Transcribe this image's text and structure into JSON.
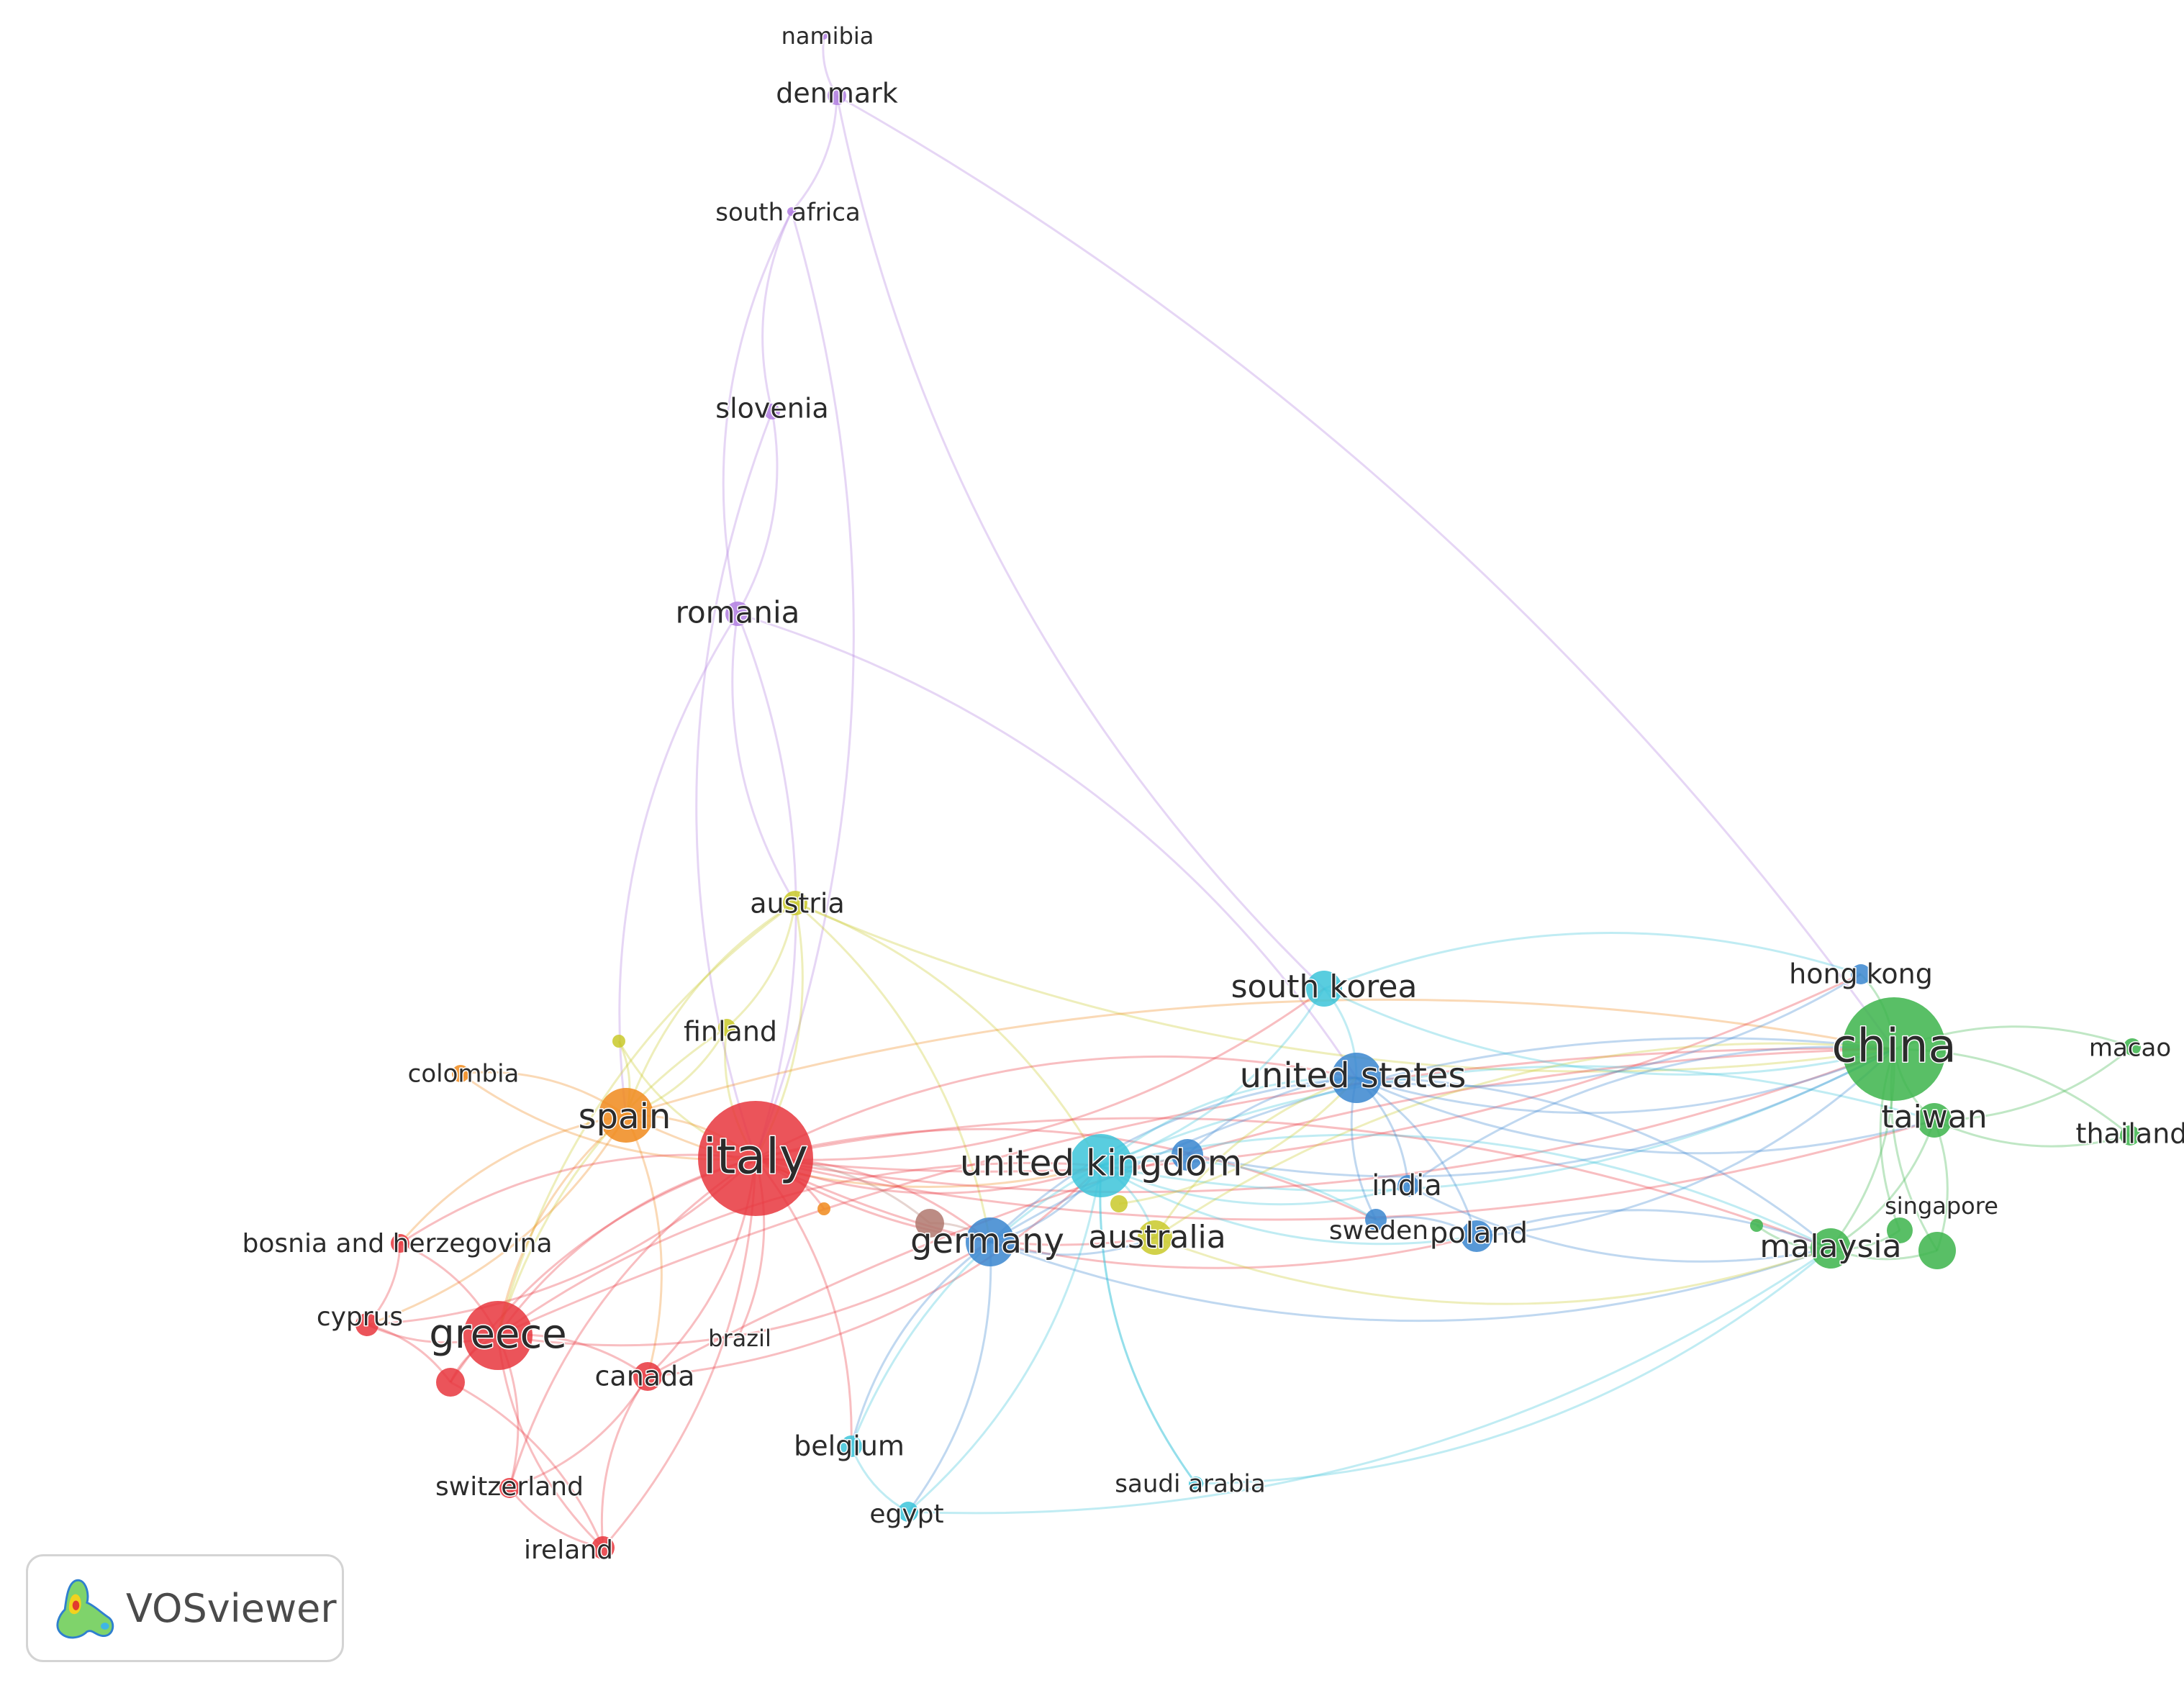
{
  "app": {
    "name": "VOSviewer"
  },
  "network": {
    "clusters": [
      {
        "id": 1,
        "color": "#e8363d"
      },
      {
        "id": 2,
        "color": "#3cb44b"
      },
      {
        "id": 3,
        "color": "#3a86cf"
      },
      {
        "id": 4,
        "color": "#c9c92a"
      },
      {
        "id": 5,
        "color": "#b07ee0"
      },
      {
        "id": 6,
        "color": "#3cc4d9"
      },
      {
        "id": 7,
        "color": "#f08a1c"
      },
      {
        "id": 8,
        "color": "#b0786e"
      }
    ],
    "nodes": [
      {
        "id": "namibia",
        "label": "namibia",
        "cluster": 5
      },
      {
        "id": "denmark",
        "label": "denmark",
        "cluster": 5
      },
      {
        "id": "south_africa",
        "label": "south africa",
        "cluster": 5
      },
      {
        "id": "slovenia",
        "label": "slovenia",
        "cluster": 5
      },
      {
        "id": "romania",
        "label": "romania",
        "cluster": 5
      },
      {
        "id": "austria",
        "label": "austria",
        "cluster": 4
      },
      {
        "id": "finland",
        "label": "finland",
        "cluster": 4
      },
      {
        "id": "yellow_small",
        "label": "",
        "cluster": 4
      },
      {
        "id": "colombia",
        "label": "colombia",
        "cluster": 7
      },
      {
        "id": "spain",
        "label": "spain",
        "cluster": 7
      },
      {
        "id": "orange_small",
        "label": "",
        "cluster": 7
      },
      {
        "id": "italy",
        "label": "italy",
        "cluster": 1
      },
      {
        "id": "bosnia",
        "label": "bosnia and herzegovina",
        "cluster": 1
      },
      {
        "id": "cyprus",
        "label": "cyprus",
        "cluster": 1
      },
      {
        "id": "greece",
        "label": "greece",
        "cluster": 1
      },
      {
        "id": "red_small",
        "label": "",
        "cluster": 1
      },
      {
        "id": "canada",
        "label": "canada",
        "cluster": 1
      },
      {
        "id": "brazil",
        "label": "brazil",
        "cluster": 1
      },
      {
        "id": "switzerland",
        "label": "switzerland",
        "cluster": 1
      },
      {
        "id": "ireland",
        "label": "ireland",
        "cluster": 1
      },
      {
        "id": "germany",
        "label": "germany",
        "cluster": 3
      },
      {
        "id": "brown_node",
        "label": "",
        "cluster": 8
      },
      {
        "id": "united_kingdom",
        "label": "united kingdom",
        "cluster": 6
      },
      {
        "id": "blue_uk",
        "label": "",
        "cluster": 3
      },
      {
        "id": "australia",
        "label": "australia",
        "cluster": 4
      },
      {
        "id": "yellow_au",
        "label": "",
        "cluster": 4
      },
      {
        "id": "belgium",
        "label": "belgium",
        "cluster": 6
      },
      {
        "id": "egypt",
        "label": "egypt",
        "cluster": 6
      },
      {
        "id": "saudi_arabia",
        "label": "saudi arabia",
        "cluster": 6
      },
      {
        "id": "south_korea",
        "label": "south korea",
        "cluster": 6
      },
      {
        "id": "united_states",
        "label": "united states",
        "cluster": 3
      },
      {
        "id": "india",
        "label": "india",
        "cluster": 3
      },
      {
        "id": "sweden",
        "label": "sweden",
        "cluster": 3
      },
      {
        "id": "poland",
        "label": "poland",
        "cluster": 3
      },
      {
        "id": "hong_kong",
        "label": "hong kong",
        "cluster": 3
      },
      {
        "id": "china",
        "label": "china",
        "cluster": 2
      },
      {
        "id": "macao",
        "label": "macao",
        "cluster": 2
      },
      {
        "id": "taiwan",
        "label": "taiwan",
        "cluster": 2
      },
      {
        "id": "thailand",
        "label": "thailand",
        "cluster": 2
      },
      {
        "id": "singapore",
        "label": "singapore",
        "cluster": 2
      },
      {
        "id": "green_extra",
        "label": "",
        "cluster": 2
      },
      {
        "id": "green_small",
        "label": "",
        "cluster": 2
      },
      {
        "id": "malaysia",
        "label": "malaysia",
        "cluster": 2
      }
    ],
    "links": [
      [
        "namibia",
        "denmark"
      ],
      [
        "denmark",
        "south_africa"
      ],
      [
        "south_africa",
        "slovenia"
      ],
      [
        "slovenia",
        "romania"
      ],
      [
        "south_africa",
        "romania"
      ],
      [
        "denmark",
        "china"
      ],
      [
        "denmark",
        "south_korea"
      ],
      [
        "south_africa",
        "italy"
      ],
      [
        "slovenia",
        "italy"
      ],
      [
        "romania",
        "italy"
      ],
      [
        "romania",
        "spain"
      ],
      [
        "romania",
        "united_states"
      ],
      [
        "romania",
        "austria"
      ],
      [
        "austria",
        "italy"
      ],
      [
        "austria",
        "spain"
      ],
      [
        "austria",
        "finland"
      ],
      [
        "austria",
        "greece"
      ],
      [
        "austria",
        "united_kingdom"
      ],
      [
        "austria",
        "china"
      ],
      [
        "austria",
        "germany"
      ],
      [
        "finland",
        "italy"
      ],
      [
        "finland",
        "spain"
      ],
      [
        "finland",
        "greece"
      ],
      [
        "yellow_small",
        "spain"
      ],
      [
        "yellow_small",
        "italy"
      ],
      [
        "colombia",
        "spain"
      ],
      [
        "colombia",
        "italy"
      ],
      [
        "spain",
        "italy"
      ],
      [
        "spain",
        "greece"
      ],
      [
        "spain",
        "cyprus"
      ],
      [
        "spain",
        "bosnia"
      ],
      [
        "spain",
        "canada"
      ],
      [
        "spain",
        "united_kingdom"
      ],
      [
        "spain",
        "china"
      ],
      [
        "italy",
        "greece"
      ],
      [
        "italy",
        "cyprus"
      ],
      [
        "italy",
        "bosnia"
      ],
      [
        "italy",
        "canada"
      ],
      [
        "italy",
        "switzerland"
      ],
      [
        "italy",
        "ireland"
      ],
      [
        "italy",
        "red_small"
      ],
      [
        "italy",
        "brazil"
      ],
      [
        "italy",
        "united_kingdom"
      ],
      [
        "italy",
        "germany"
      ],
      [
        "italy",
        "australia"
      ],
      [
        "italy",
        "united_states"
      ],
      [
        "italy",
        "china"
      ],
      [
        "italy",
        "malaysia"
      ],
      [
        "italy",
        "taiwan"
      ],
      [
        "italy",
        "belgium"
      ],
      [
        "italy",
        "poland"
      ],
      [
        "italy",
        "sweden"
      ],
      [
        "italy",
        "hong_kong"
      ],
      [
        "italy",
        "orange_small"
      ],
      [
        "italy",
        "south_korea"
      ],
      [
        "greece",
        "cyprus"
      ],
      [
        "greece",
        "bosnia"
      ],
      [
        "greece",
        "canada"
      ],
      [
        "greece",
        "red_small"
      ],
      [
        "greece",
        "switzerland"
      ],
      [
        "greece",
        "ireland"
      ],
      [
        "greece",
        "united_kingdom"
      ],
      [
        "greece",
        "germany"
      ],
      [
        "greece",
        "china"
      ],
      [
        "cyprus",
        "bosnia"
      ],
      [
        "cyprus",
        "red_small"
      ],
      [
        "canada",
        "ireland"
      ],
      [
        "canada",
        "switzerland"
      ],
      [
        "canada",
        "united_kingdom"
      ],
      [
        "canada",
        "china"
      ],
      [
        "switzerland",
        "ireland"
      ],
      [
        "red_small",
        "ireland"
      ],
      [
        "germany",
        "united_kingdom"
      ],
      [
        "germany",
        "china"
      ],
      [
        "germany",
        "malaysia"
      ],
      [
        "germany",
        "egypt"
      ],
      [
        "germany",
        "belgium"
      ],
      [
        "germany",
        "united_states"
      ],
      [
        "germany",
        "australia"
      ],
      [
        "brown_node",
        "germany"
      ],
      [
        "brown_node",
        "italy"
      ],
      [
        "united_kingdom",
        "united_states"
      ],
      [
        "united_kingdom",
        "china"
      ],
      [
        "united_kingdom",
        "malaysia"
      ],
      [
        "united_kingdom",
        "south_korea"
      ],
      [
        "united_kingdom",
        "australia"
      ],
      [
        "united_kingdom",
        "india"
      ],
      [
        "united_kingdom",
        "sweden"
      ],
      [
        "united_kingdom",
        "poland"
      ],
      [
        "united_kingdom",
        "taiwan"
      ],
      [
        "united_kingdom",
        "saudi_arabia"
      ],
      [
        "united_kingdom",
        "egypt"
      ],
      [
        "united_kingdom",
        "belgium"
      ],
      [
        "blue_uk",
        "united_states"
      ],
      [
        "blue_uk",
        "china"
      ],
      [
        "australia",
        "china"
      ],
      [
        "australia",
        "malaysia"
      ],
      [
        "australia",
        "united_states"
      ],
      [
        "yellow_au",
        "united_states"
      ],
      [
        "egypt",
        "belgium"
      ],
      [
        "egypt",
        "malaysia"
      ],
      [
        "saudi_arabia",
        "united_kingdom"
      ],
      [
        "saudi_arabia",
        "malaysia"
      ],
      [
        "south_korea",
        "united_states"
      ],
      [
        "south_korea",
        "china"
      ],
      [
        "south_korea",
        "hong_kong"
      ],
      [
        "united_states",
        "china"
      ],
      [
        "united_states",
        "india"
      ],
      [
        "united_states",
        "sweden"
      ],
      [
        "united_states",
        "poland"
      ],
      [
        "united_states",
        "hong_kong"
      ],
      [
        "united_states",
        "malaysia"
      ],
      [
        "united_states",
        "taiwan"
      ],
      [
        "india",
        "china"
      ],
      [
        "india",
        "malaysia"
      ],
      [
        "sweden",
        "poland"
      ],
      [
        "poland",
        "china"
      ],
      [
        "poland",
        "malaysia"
      ],
      [
        "china",
        "hong_kong"
      ],
      [
        "china",
        "macao"
      ],
      [
        "china",
        "taiwan"
      ],
      [
        "china",
        "thailand"
      ],
      [
        "china",
        "singapore"
      ],
      [
        "china",
        "malaysia"
      ],
      [
        "china",
        "green_extra"
      ],
      [
        "taiwan",
        "malaysia"
      ],
      [
        "taiwan",
        "thailand"
      ],
      [
        "singapore",
        "malaysia"
      ],
      [
        "green_small",
        "malaysia"
      ],
      [
        "green_extra",
        "malaysia"
      ],
      [
        "green_extra",
        "taiwan"
      ],
      [
        "macao",
        "taiwan"
      ]
    ]
  }
}
